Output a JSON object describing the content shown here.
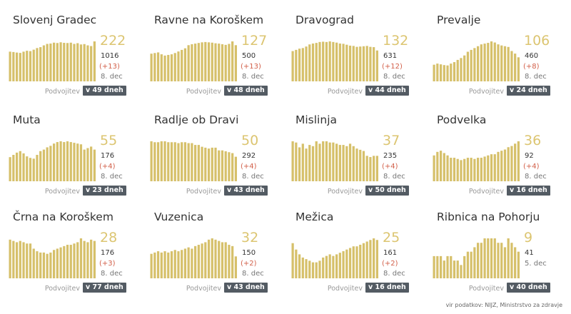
{
  "source_text": "vir podatkov: NIJZ, Ministrstvo za zdravje",
  "doubling_label": "Podvojitev",
  "bar_color": "#d6c06a",
  "chart_data": [
    {
      "type": "bar",
      "title": "Slovenj Gradec",
      "active": "222",
      "total": "1016",
      "delta": "(+13)",
      "date": "8. dec",
      "doubling": "v 49 dneh",
      "values": [
        165,
        163,
        160,
        158,
        165,
        170,
        168,
        176,
        185,
        190,
        200,
        208,
        210,
        215,
        213,
        217,
        214,
        213,
        215,
        208,
        212,
        205,
        207,
        200,
        196,
        222
      ]
    },
    {
      "type": "bar",
      "title": "Ravne na Koroškem",
      "active": "127",
      "total": "500",
      "delta": "(+13)",
      "date": "8. dec",
      "doubling": "v 48 dneh",
      "values": [
        88,
        90,
        92,
        86,
        82,
        84,
        86,
        90,
        95,
        100,
        105,
        115,
        118,
        120,
        122,
        124,
        125,
        124,
        123,
        121,
        120,
        118,
        116,
        119,
        127,
        115
      ]
    },
    {
      "type": "bar",
      "title": "Dravograd",
      "active": "132",
      "total": "631",
      "delta": "(+12)",
      "date": "8. dec",
      "doubling": "v 44 dneh",
      "values": [
        100,
        104,
        108,
        110,
        115,
        122,
        125,
        127,
        130,
        131,
        130,
        132,
        130,
        128,
        125,
        124,
        121,
        118,
        117,
        114,
        115,
        116,
        117,
        114,
        113,
        102
      ]
    },
    {
      "type": "bar",
      "title": "Prevalje",
      "active": "106",
      "total": "460",
      "delta": "(+8)",
      "date": "8. dec",
      "doubling": "v 24 dneh",
      "values": [
        45,
        48,
        46,
        44,
        43,
        48,
        52,
        58,
        63,
        70,
        80,
        85,
        90,
        95,
        100,
        102,
        104,
        108,
        105,
        100,
        97,
        95,
        93,
        82,
        75,
        65
      ]
    },
    {
      "type": "bar",
      "title": "Muta",
      "active": "55",
      "total": "176",
      "delta": "(+4)",
      "date": "8. dec",
      "doubling": "v 23 dneh",
      "values": [
        32,
        35,
        38,
        40,
        37,
        33,
        31,
        30,
        35,
        40,
        42,
        45,
        47,
        50,
        52,
        53,
        52,
        53,
        52,
        51,
        50,
        49,
        42,
        44,
        46,
        42
      ]
    },
    {
      "type": "bar",
      "title": "Radlje ob Dravi",
      "active": "50",
      "total": "292",
      "delta": "(+4)",
      "date": "8. dec",
      "doubling": "v 43 dneh",
      "values": [
        44,
        43,
        43,
        44,
        44,
        43,
        43,
        43,
        42,
        43,
        43,
        42,
        42,
        40,
        40,
        38,
        37,
        36,
        37,
        37,
        34,
        34,
        33,
        32,
        31,
        27
      ]
    },
    {
      "type": "bar",
      "title": "Mislinja",
      "active": "37",
      "total": "235",
      "delta": "(+4)",
      "date": "8. dec",
      "doubling": "v 50 dneh",
      "values": [
        33,
        32,
        28,
        31,
        27,
        30,
        29,
        33,
        31,
        33,
        33,
        32,
        32,
        31,
        30,
        30,
        29,
        31,
        29,
        27,
        26,
        25,
        21,
        20,
        21,
        21
      ]
    },
    {
      "type": "bar",
      "title": "Podvelka",
      "active": "36",
      "total": "92",
      "delta": "(+4)",
      "date": "8. dec",
      "doubling": "v 16 dneh",
      "values": [
        22,
        25,
        26,
        24,
        22,
        20,
        20,
        19,
        18,
        19,
        20,
        20,
        19,
        20,
        20,
        21,
        22,
        23,
        23,
        25,
        26,
        27,
        29,
        30,
        32,
        34
      ]
    },
    {
      "type": "bar",
      "title": "Črna na Koroškem",
      "active": "28",
      "total": "176",
      "delta": "(+3)",
      "date": "8. dec",
      "doubling": "v 77 dneh",
      "values": [
        30,
        29,
        28,
        29,
        28,
        27,
        27,
        23,
        21,
        20,
        20,
        19,
        20,
        22,
        23,
        24,
        25,
        26,
        26,
        27,
        28,
        31,
        29,
        28,
        30,
        29
      ]
    },
    {
      "type": "bar",
      "title": "Vuzenica",
      "active": "32",
      "total": "150",
      "delta": "(+2)",
      "date": "8. dec",
      "doubling": "v 43 dneh",
      "values": [
        19,
        20,
        21,
        20,
        21,
        20,
        21,
        22,
        21,
        22,
        23,
        24,
        23,
        25,
        26,
        27,
        28,
        30,
        31,
        30,
        29,
        28,
        28,
        26,
        25,
        17
      ]
    },
    {
      "type": "bar",
      "title": "Mežica",
      "active": "25",
      "total": "161",
      "delta": "(+2)",
      "date": "8. dec",
      "doubling": "v 16 dneh",
      "values": [
        22,
        18,
        15,
        13,
        12,
        11,
        10,
        10,
        11,
        13,
        14,
        15,
        14,
        15,
        16,
        17,
        18,
        19,
        20,
        20,
        21,
        22,
        23,
        24,
        25,
        24
      ]
    },
    {
      "type": "bar",
      "title": "Ribnica na Pohorju",
      "active": "9",
      "total": "41",
      "delta": "",
      "date": "5. dec",
      "doubling": "v 40 dneh",
      "values": [
        5,
        5,
        5,
        4,
        5,
        5,
        4,
        4,
        3,
        5,
        6,
        6,
        7,
        8,
        8,
        9,
        9,
        9,
        9,
        8,
        8,
        7,
        9,
        8,
        7,
        6
      ]
    }
  ]
}
